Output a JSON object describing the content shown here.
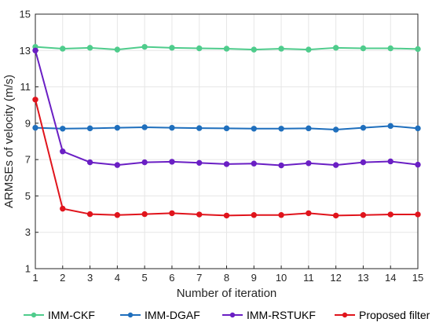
{
  "chart_data": {
    "type": "line",
    "title": "",
    "xlabel": "Number of iteration",
    "ylabel": "ARMSEs of velocity (m/s)",
    "xlim": [
      1,
      15
    ],
    "ylim": [
      1,
      15
    ],
    "xticks": [
      1,
      2,
      3,
      4,
      5,
      6,
      7,
      8,
      9,
      10,
      11,
      12,
      13,
      14,
      15
    ],
    "yticks": [
      1,
      3,
      5,
      7,
      9,
      11,
      13,
      15
    ],
    "grid": true,
    "legend_position": "bottom",
    "x": [
      1,
      2,
      3,
      4,
      5,
      6,
      7,
      8,
      9,
      10,
      11,
      12,
      13,
      14,
      15
    ],
    "series": [
      {
        "name": "IMM-CKF",
        "color": "#4fcc8c",
        "values": [
          13.2,
          13.1,
          13.15,
          13.05,
          13.2,
          13.15,
          13.12,
          13.1,
          13.05,
          13.1,
          13.05,
          13.15,
          13.12,
          13.12,
          13.08
        ]
      },
      {
        "name": "IMM-DGAF",
        "color": "#1f6fbd",
        "values": [
          8.75,
          8.7,
          8.72,
          8.75,
          8.78,
          8.75,
          8.73,
          8.72,
          8.7,
          8.7,
          8.72,
          8.65,
          8.75,
          8.85,
          8.72
        ]
      },
      {
        "name": "IMM-RSTUKF",
        "color": "#6a1fc4",
        "values": [
          13.0,
          7.45,
          6.85,
          6.7,
          6.85,
          6.88,
          6.82,
          6.75,
          6.78,
          6.68,
          6.8,
          6.7,
          6.85,
          6.9,
          6.72
        ]
      },
      {
        "name": "Proposed filter",
        "color": "#e0141c",
        "values": [
          10.3,
          4.3,
          4.0,
          3.95,
          4.0,
          4.05,
          3.98,
          3.92,
          3.95,
          3.95,
          4.05,
          3.92,
          3.95,
          3.98,
          3.98
        ]
      }
    ]
  }
}
